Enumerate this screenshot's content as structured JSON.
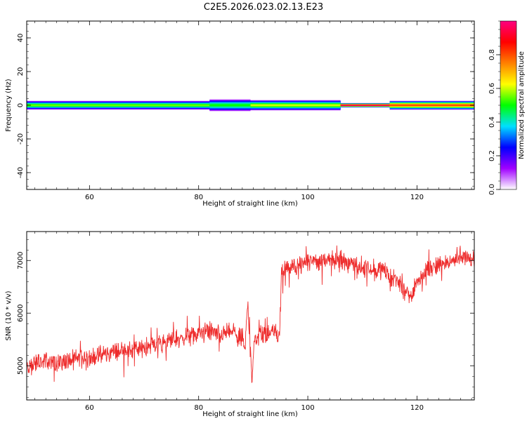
{
  "title": "C2E5.2026.023.02.13.E23",
  "chart_data": [
    {
      "type": "heatmap",
      "xlabel": "Height of straight line (km)",
      "ylabel": "Frequency (Hz)",
      "xlim": [
        48.5,
        130.5
      ],
      "ylim": [
        -50,
        50
      ],
      "x_ticks": [
        60,
        80,
        100,
        120
      ],
      "y_ticks": [
        40,
        20,
        0,
        -20,
        -40
      ],
      "x_tick_labels": [
        "60",
        "80",
        "100",
        "120"
      ],
      "y_tick_labels": [
        "40",
        "20",
        "0",
        "-20",
        "-40"
      ],
      "colorbar": {
        "label": "Normalized spectral amplitude",
        "range": [
          0,
          1
        ],
        "ticks": [
          0.0,
          0.2,
          0.4,
          0.6,
          0.8
        ],
        "tick_labels": [
          "0.0",
          "0.2",
          "0.4",
          "0.6",
          "0.8"
        ],
        "colors": [
          "#ffffff",
          "#a000ff",
          "#0000ff",
          "#00e0ff",
          "#00ff00",
          "#ffff00",
          "#ff8000",
          "#ff0000",
          "#ff0080"
        ]
      },
      "band": {
        "center_frequency": 0,
        "segments": [
          {
            "x": [
              48.5,
              82
            ],
            "halfwidth_hz": 3,
            "peak_amplitude": 0.55
          },
          {
            "x": [
              82,
              89.5
            ],
            "halfwidth_hz": 4,
            "peak_amplitude": 0.5
          },
          {
            "x": [
              89.5,
              106
            ],
            "halfwidth_hz": 3.5,
            "peak_amplitude": 0.6
          },
          {
            "x": [
              106,
              115
            ],
            "halfwidth_hz": 1.5,
            "peak_amplitude": 0.95
          },
          {
            "x": [
              115,
              130.5
            ],
            "halfwidth_hz": 3,
            "peak_amplitude": 0.8
          }
        ]
      }
    },
    {
      "type": "line",
      "xlabel": "Height of straight line (km)",
      "ylabel": "SNR (10 * v/v)",
      "xlim": [
        48.5,
        130.5
      ],
      "ylim": [
        4350,
        7550
      ],
      "x_ticks": [
        60,
        80,
        100,
        120
      ],
      "y_ticks": [
        5000,
        6000,
        7000
      ],
      "x_tick_labels": [
        "60",
        "80",
        "100",
        "120"
      ],
      "y_tick_labels": [
        "5000",
        "6000",
        "7000"
      ],
      "series": [
        {
          "color": "#ee2b2b",
          "x": [
            48.5,
            50,
            52,
            54,
            56,
            58,
            60,
            62,
            64,
            66,
            68,
            70,
            72,
            74,
            76,
            78,
            80,
            82,
            84,
            86,
            88,
            88.5,
            89,
            89.4,
            89.8,
            90.2,
            91,
            92,
            93,
            94,
            94.8,
            95.2,
            96,
            98,
            100,
            102,
            104,
            106,
            108,
            110,
            112,
            114,
            116,
            118,
            119,
            120,
            122,
            124,
            126,
            128,
            130,
            130.5
          ],
          "y": [
            4950,
            5050,
            5100,
            5050,
            5100,
            5150,
            5150,
            5200,
            5250,
            5300,
            5300,
            5350,
            5400,
            5450,
            5500,
            5550,
            5600,
            5650,
            5600,
            5650,
            5550,
            5300,
            6200,
            5600,
            4700,
            5500,
            5650,
            5600,
            5650,
            5700,
            5500,
            6750,
            6850,
            6900,
            6950,
            7000,
            7050,
            7000,
            6950,
            6850,
            6850,
            6800,
            6650,
            6400,
            6300,
            6600,
            6850,
            6900,
            6950,
            7100,
            7050,
            7000
          ]
        }
      ]
    }
  ]
}
